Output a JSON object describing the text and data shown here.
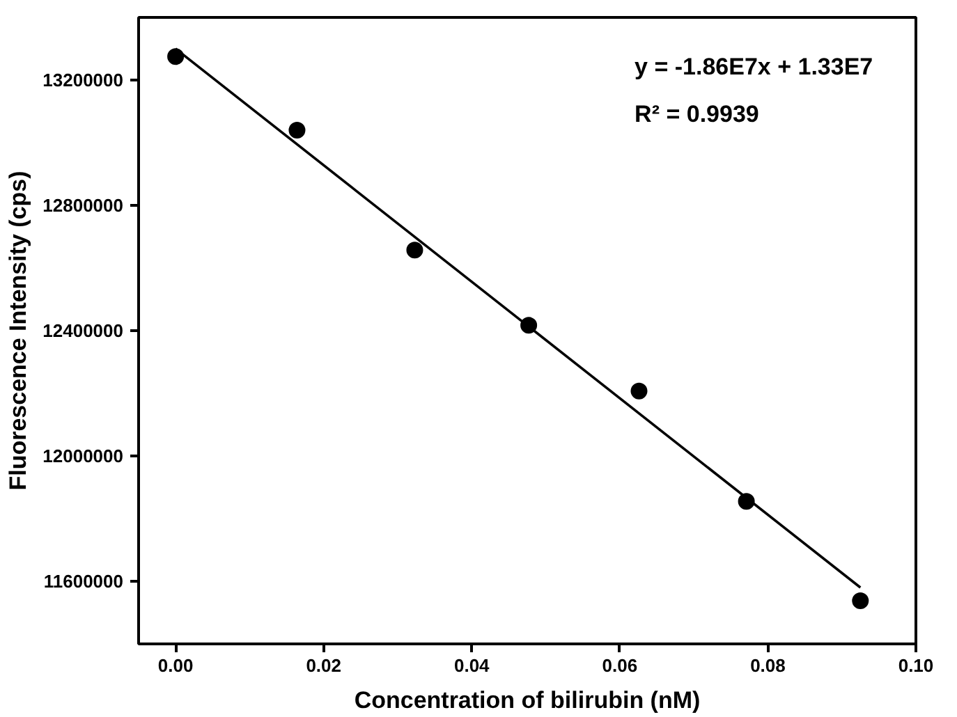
{
  "chart_data": {
    "type": "scatter",
    "xlabel": "Concentration of bilirubin (nM)",
    "ylabel": "Fluorescence Intensity (cps)",
    "xlim": [
      -0.005,
      0.1
    ],
    "xticks": [
      {
        "value": 0,
        "label": "0.00"
      },
      {
        "value": 0.02,
        "label": "0.02"
      },
      {
        "value": 0.04,
        "label": "0.04"
      },
      {
        "value": 0.06,
        "label": "0.06"
      },
      {
        "value": 0.08,
        "label": "0.08"
      },
      {
        "value": 0.1,
        "label": "0.10"
      }
    ],
    "ylim": [
      11400000,
      13400000
    ],
    "yticks": [
      11600000,
      12000000,
      12400000,
      12800000,
      13200000
    ],
    "series": [
      {
        "color": "#000000",
        "marker": "circle",
        "x": [
          0,
          0.0164,
          0.0323,
          0.0477,
          0.0626,
          0.0771,
          0.0925
        ],
        "values": [
          13275000,
          13040000,
          12657000,
          12417000,
          12207000,
          11855000,
          11538000
        ]
      },
      {
        "type": "line",
        "color": "#000000",
        "line_style": "solid",
        "x": [
          0,
          0.0925
        ],
        "values": [
          13300000,
          11580000
        ]
      }
    ],
    "annotations": [
      "y = -1.86E7x + 1.33E7",
      "R² = 0.9939"
    ],
    "grid": false
  }
}
